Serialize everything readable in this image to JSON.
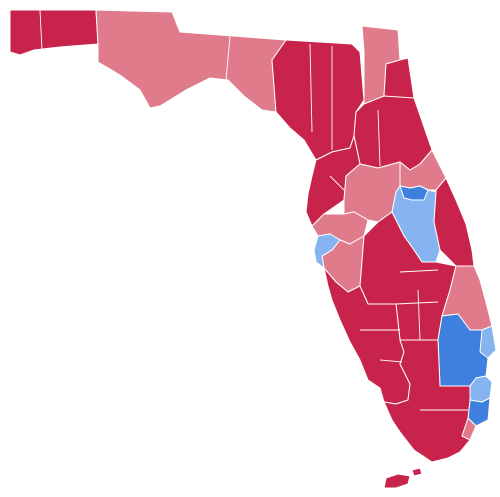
{
  "map": {
    "colors": {
      "dark_red": "#C8234A",
      "light_red": "#E07B8C",
      "mid_red": "#D24A63",
      "dark_blue": "#3F80DE",
      "light_blue": "#86B4F0",
      "background": "#FFFFFF"
    },
    "regions": [
      {
        "id": "panhandle-west",
        "category": "dark_red"
      },
      {
        "id": "panhandle-central",
        "category": "light_red"
      },
      {
        "id": "big-bend",
        "category": "dark_red"
      },
      {
        "id": "northeast-north",
        "category": "dark_red"
      },
      {
        "id": "northeast-central",
        "category": "dark_red"
      },
      {
        "id": "north-central",
        "category": "dark_red"
      },
      {
        "id": "north-light",
        "category": "light_red"
      },
      {
        "id": "jacksonville",
        "category": "light_red"
      },
      {
        "id": "nature-coast",
        "category": "dark_red"
      },
      {
        "id": "central-west-light",
        "category": "light_red"
      },
      {
        "id": "orlando",
        "category": "light_blue"
      },
      {
        "id": "orlando-core",
        "category": "dark_blue"
      },
      {
        "id": "tampa-bay",
        "category": "light_blue"
      },
      {
        "id": "space-coast",
        "category": "dark_red"
      },
      {
        "id": "central-south",
        "category": "dark_red"
      },
      {
        "id": "southwest",
        "category": "dark_red"
      },
      {
        "id": "treasure-coast",
        "category": "light_red"
      },
      {
        "id": "palm-beach",
        "category": "dark_blue"
      },
      {
        "id": "broward",
        "category": "light_blue"
      },
      {
        "id": "miami-dade",
        "category": "dark_blue"
      },
      {
        "id": "everglades",
        "category": "dark_red"
      },
      {
        "id": "keys",
        "category": "dark_red"
      }
    ]
  }
}
